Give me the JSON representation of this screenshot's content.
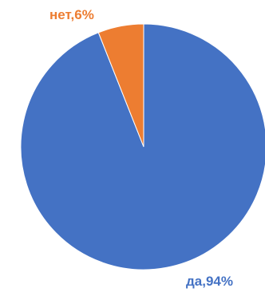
{
  "chart_data": {
    "type": "pie",
    "categories": [
      "да",
      "нет"
    ],
    "values": [
      94,
      6
    ],
    "labels": [
      "да,94%",
      "нет,6%"
    ],
    "colors": [
      "#4472C4",
      "#ED7D31"
    ],
    "title": "",
    "legend": "none"
  }
}
